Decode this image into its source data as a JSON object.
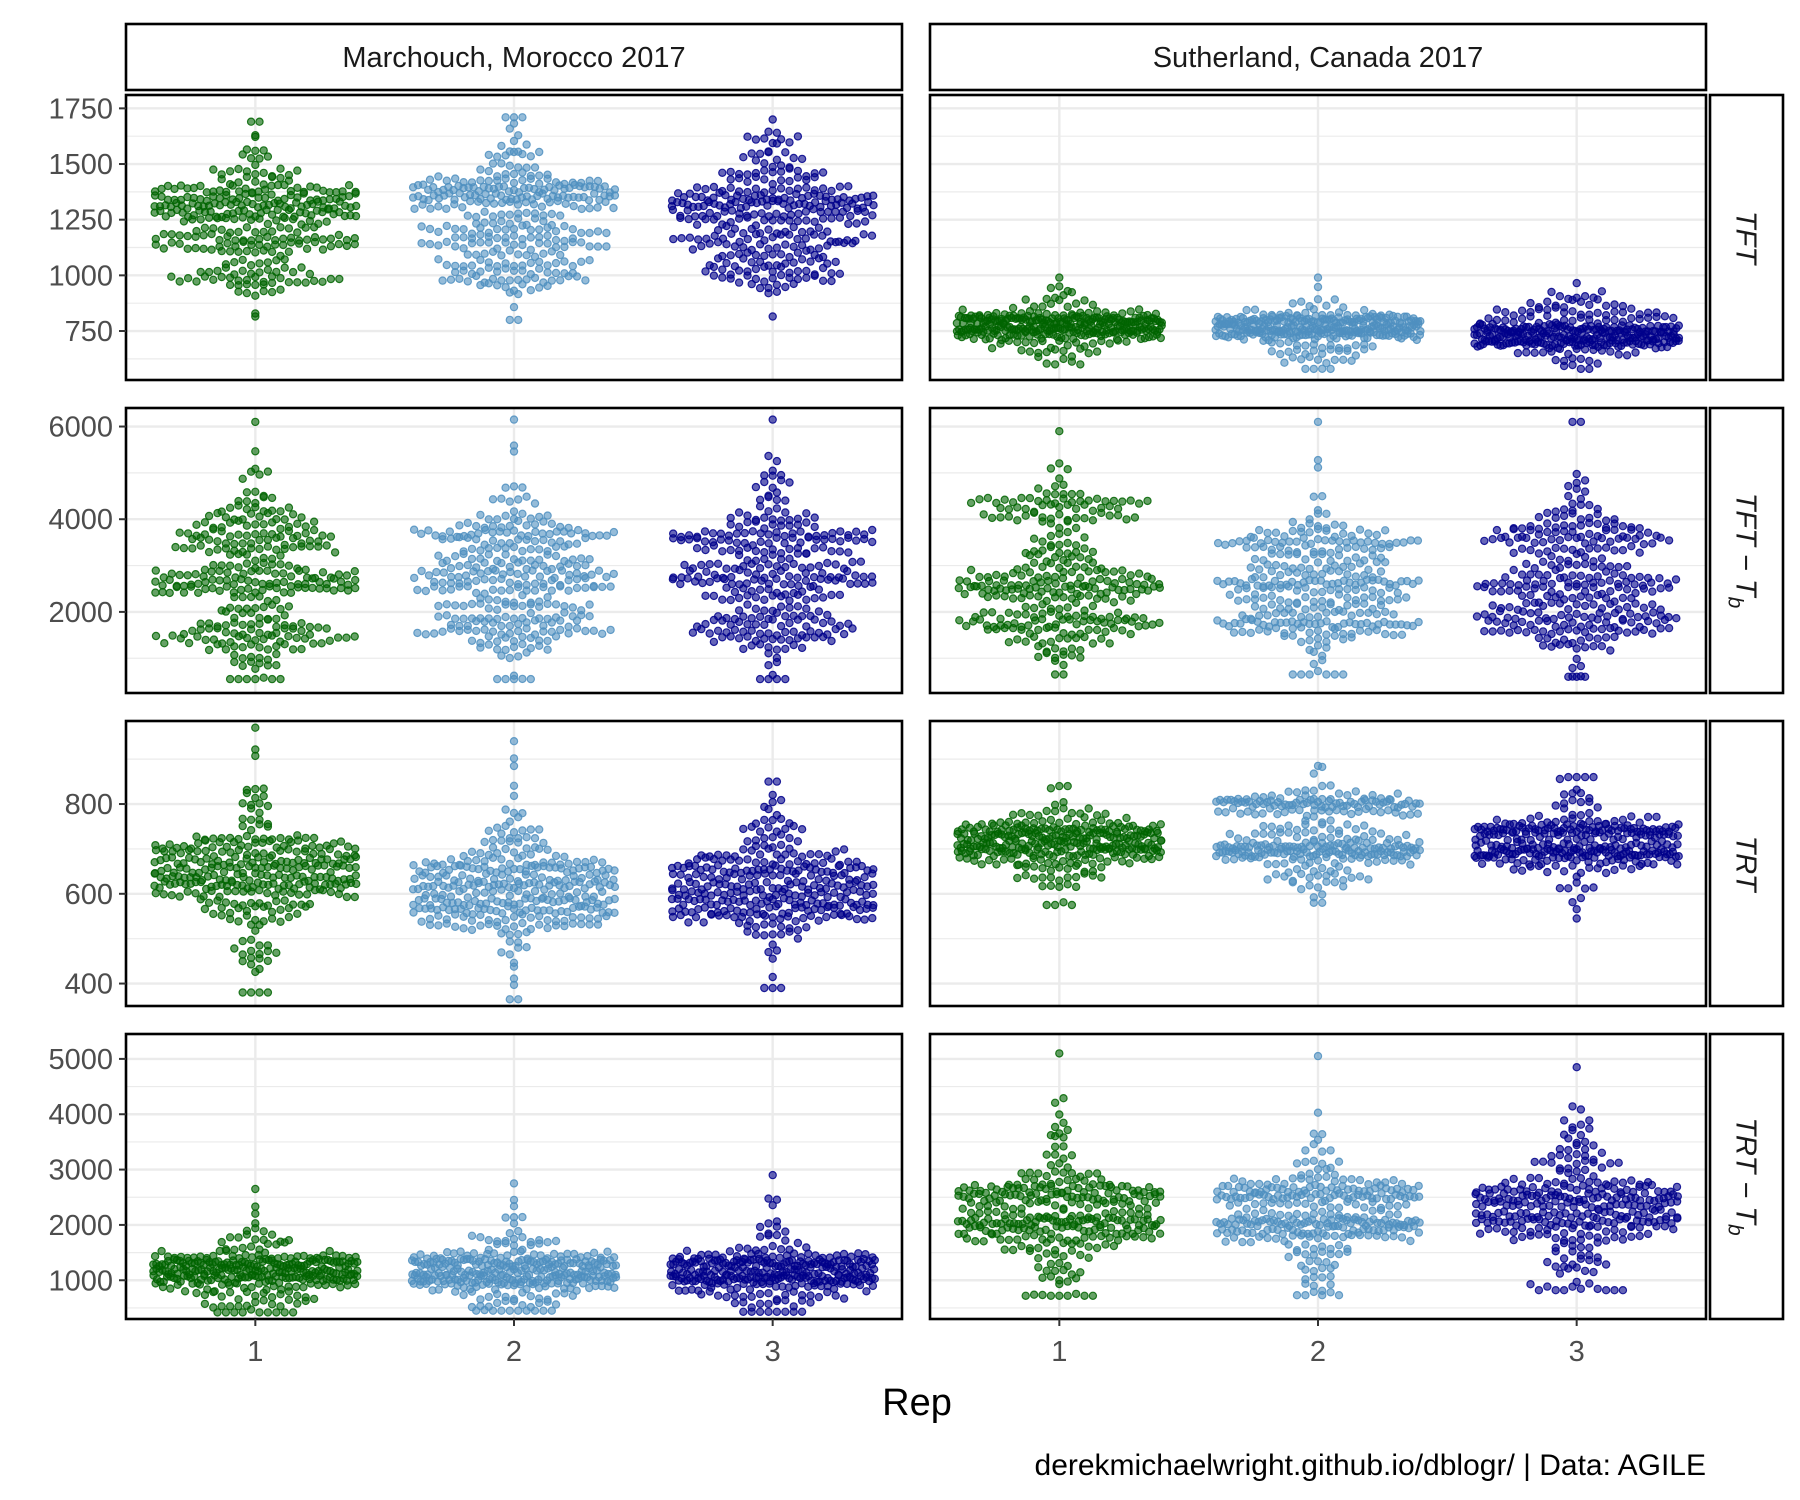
{
  "chart_data": {
    "type": "scatter",
    "subtype": "beeswarm",
    "facet_columns": [
      "Marchouch, Morocco 2017",
      "Sutherland, Canada 2017"
    ],
    "facet_rows": [
      {
        "id": "TFT",
        "label": "TFT",
        "ylim": [
          530,
          1810
        ],
        "yticks": [
          750,
          1000,
          1250,
          1500,
          1750
        ]
      },
      {
        "id": "TFT_Tb",
        "label": "TFT − T",
        "sub": "b",
        "ylim": [
          250,
          6400
        ],
        "yticks": [
          2000,
          4000,
          6000
        ]
      },
      {
        "id": "TRT",
        "label": "TRT",
        "ylim": [
          350,
          985
        ],
        "yticks": [
          400,
          600,
          800
        ]
      },
      {
        "id": "TRT_Tb",
        "label": "TRT − T",
        "sub": "b",
        "ylim": [
          300,
          5450
        ],
        "yticks": [
          1000,
          2000,
          3000,
          4000,
          5000
        ]
      }
    ],
    "x": {
      "label": "Rep",
      "categories": [
        "1",
        "2",
        "3"
      ]
    },
    "series_colors": {
      "1": "#006400",
      "2": "#4f8fbf",
      "3": "#00008b"
    },
    "caption": "derekmichaelwright.github.io/dblogr/ | Data: AGILE",
    "grid": true,
    "legend": "none",
    "distributions": {
      "Marchouch, Morocco 2017": {
        "TFT": [
          {
            "rep": "1",
            "median": 1310,
            "min": 815,
            "max": 1690,
            "modes": [
              [
                1350,
                0.45
              ],
              [
                1300,
                0.3
              ],
              [
                1000,
                0.3
              ],
              [
                1150,
                0.18
              ]
            ]
          },
          {
            "rep": "2",
            "median": 1300,
            "min": 800,
            "max": 1710,
            "modes": [
              [
                1350,
                0.45
              ],
              [
                1380,
                0.35
              ],
              [
                1000,
                0.35
              ],
              [
                1150,
                0.2
              ]
            ]
          },
          {
            "rep": "3",
            "median": 1300,
            "min": 815,
            "max": 1700,
            "modes": [
              [
                1350,
                0.45
              ],
              [
                1300,
                0.25
              ],
              [
                1000,
                0.28
              ],
              [
                1150,
                0.2
              ]
            ]
          }
        ],
        "TFT_Tb": [
          {
            "rep": "1",
            "median": 2700,
            "min": 550,
            "max": 6100,
            "modes": [
              [
                2700,
                0.45
              ],
              [
                3800,
                0.3
              ],
              [
                1500,
                0.25
              ]
            ]
          },
          {
            "rep": "2",
            "median": 2700,
            "min": 550,
            "max": 6150,
            "modes": [
              [
                2700,
                0.45
              ],
              [
                3700,
                0.32
              ],
              [
                1600,
                0.25
              ]
            ]
          },
          {
            "rep": "3",
            "median": 2700,
            "min": 550,
            "max": 6150,
            "modes": [
              [
                2700,
                0.45
              ],
              [
                3600,
                0.3
              ],
              [
                1600,
                0.25
              ]
            ]
          }
        ],
        "TRT": [
          {
            "rep": "1",
            "median": 640,
            "min": 380,
            "max": 970,
            "modes": [
              [
                650,
                0.45
              ],
              [
                610,
                0.35
              ],
              [
                700,
                0.3
              ]
            ]
          },
          {
            "rep": "2",
            "median": 630,
            "min": 365,
            "max": 940,
            "modes": [
              [
                610,
                0.45
              ],
              [
                660,
                0.35
              ],
              [
                560,
                0.25
              ]
            ]
          },
          {
            "rep": "3",
            "median": 630,
            "min": 390,
            "max": 850,
            "modes": [
              [
                610,
                0.45
              ],
              [
                660,
                0.35
              ],
              [
                560,
                0.3
              ]
            ]
          }
        ],
        "TRT_Tb": [
          {
            "rep": "1",
            "median": 1150,
            "min": 420,
            "max": 2650,
            "modes": [
              [
                1050,
                0.45
              ],
              [
                1300,
                0.3
              ]
            ]
          },
          {
            "rep": "2",
            "median": 1150,
            "min": 450,
            "max": 2750,
            "modes": [
              [
                1050,
                0.45
              ],
              [
                1300,
                0.3
              ]
            ]
          },
          {
            "rep": "3",
            "median": 1150,
            "min": 430,
            "max": 2900,
            "modes": [
              [
                1050,
                0.45
              ],
              [
                1300,
                0.3
              ]
            ]
          }
        ]
      },
      "Sutherland, Canada 2017": {
        "TFT": [
          {
            "rep": "1",
            "median": 760,
            "min": 600,
            "max": 990,
            "modes": [
              [
                750,
                0.45
              ],
              [
                800,
                0.3
              ]
            ]
          },
          {
            "rep": "2",
            "median": 750,
            "min": 580,
            "max": 990,
            "modes": [
              [
                750,
                0.45
              ],
              [
                800,
                0.25
              ]
            ]
          },
          {
            "rep": "3",
            "median": 745,
            "min": 580,
            "max": 965,
            "modes": [
              [
                750,
                0.45
              ],
              [
                700,
                0.3
              ]
            ]
          }
        ],
        "TFT_Tb": [
          {
            "rep": "1",
            "median": 2700,
            "min": 650,
            "max": 5900,
            "modes": [
              [
                2600,
                0.45
              ],
              [
                4300,
                0.22
              ],
              [
                1700,
                0.22
              ]
            ]
          },
          {
            "rep": "2",
            "median": 2700,
            "min": 650,
            "max": 6100,
            "modes": [
              [
                2500,
                0.45
              ],
              [
                3500,
                0.3
              ],
              [
                1700,
                0.25
              ]
            ]
          },
          {
            "rep": "3",
            "median": 2700,
            "min": 600,
            "max": 6100,
            "modes": [
              [
                2600,
                0.45
              ],
              [
                3700,
                0.28
              ],
              [
                1700,
                0.25
              ]
            ]
          }
        ],
        "TRT": [
          {
            "rep": "1",
            "median": 710,
            "min": 575,
            "max": 840,
            "modes": [
              [
                700,
                0.45
              ],
              [
                740,
                0.35
              ]
            ]
          },
          {
            "rep": "2",
            "median": 710,
            "min": 580,
            "max": 885,
            "modes": [
              [
                700,
                0.45
              ],
              [
                800,
                0.25
              ]
            ]
          },
          {
            "rep": "3",
            "median": 720,
            "min": 545,
            "max": 860,
            "modes": [
              [
                740,
                0.45
              ],
              [
                690,
                0.35
              ]
            ]
          }
        ],
        "TRT_Tb": [
          {
            "rep": "1",
            "median": 2150,
            "min": 720,
            "max": 5100,
            "modes": [
              [
                1950,
                0.45
              ],
              [
                2500,
                0.3
              ]
            ]
          },
          {
            "rep": "2",
            "median": 2150,
            "min": 730,
            "max": 5050,
            "modes": [
              [
                2000,
                0.45
              ],
              [
                2600,
                0.3
              ]
            ]
          },
          {
            "rep": "3",
            "median": 2200,
            "min": 820,
            "max": 4850,
            "modes": [
              [
                2050,
                0.45
              ],
              [
                2500,
                0.3
              ]
            ]
          }
        ]
      }
    }
  }
}
